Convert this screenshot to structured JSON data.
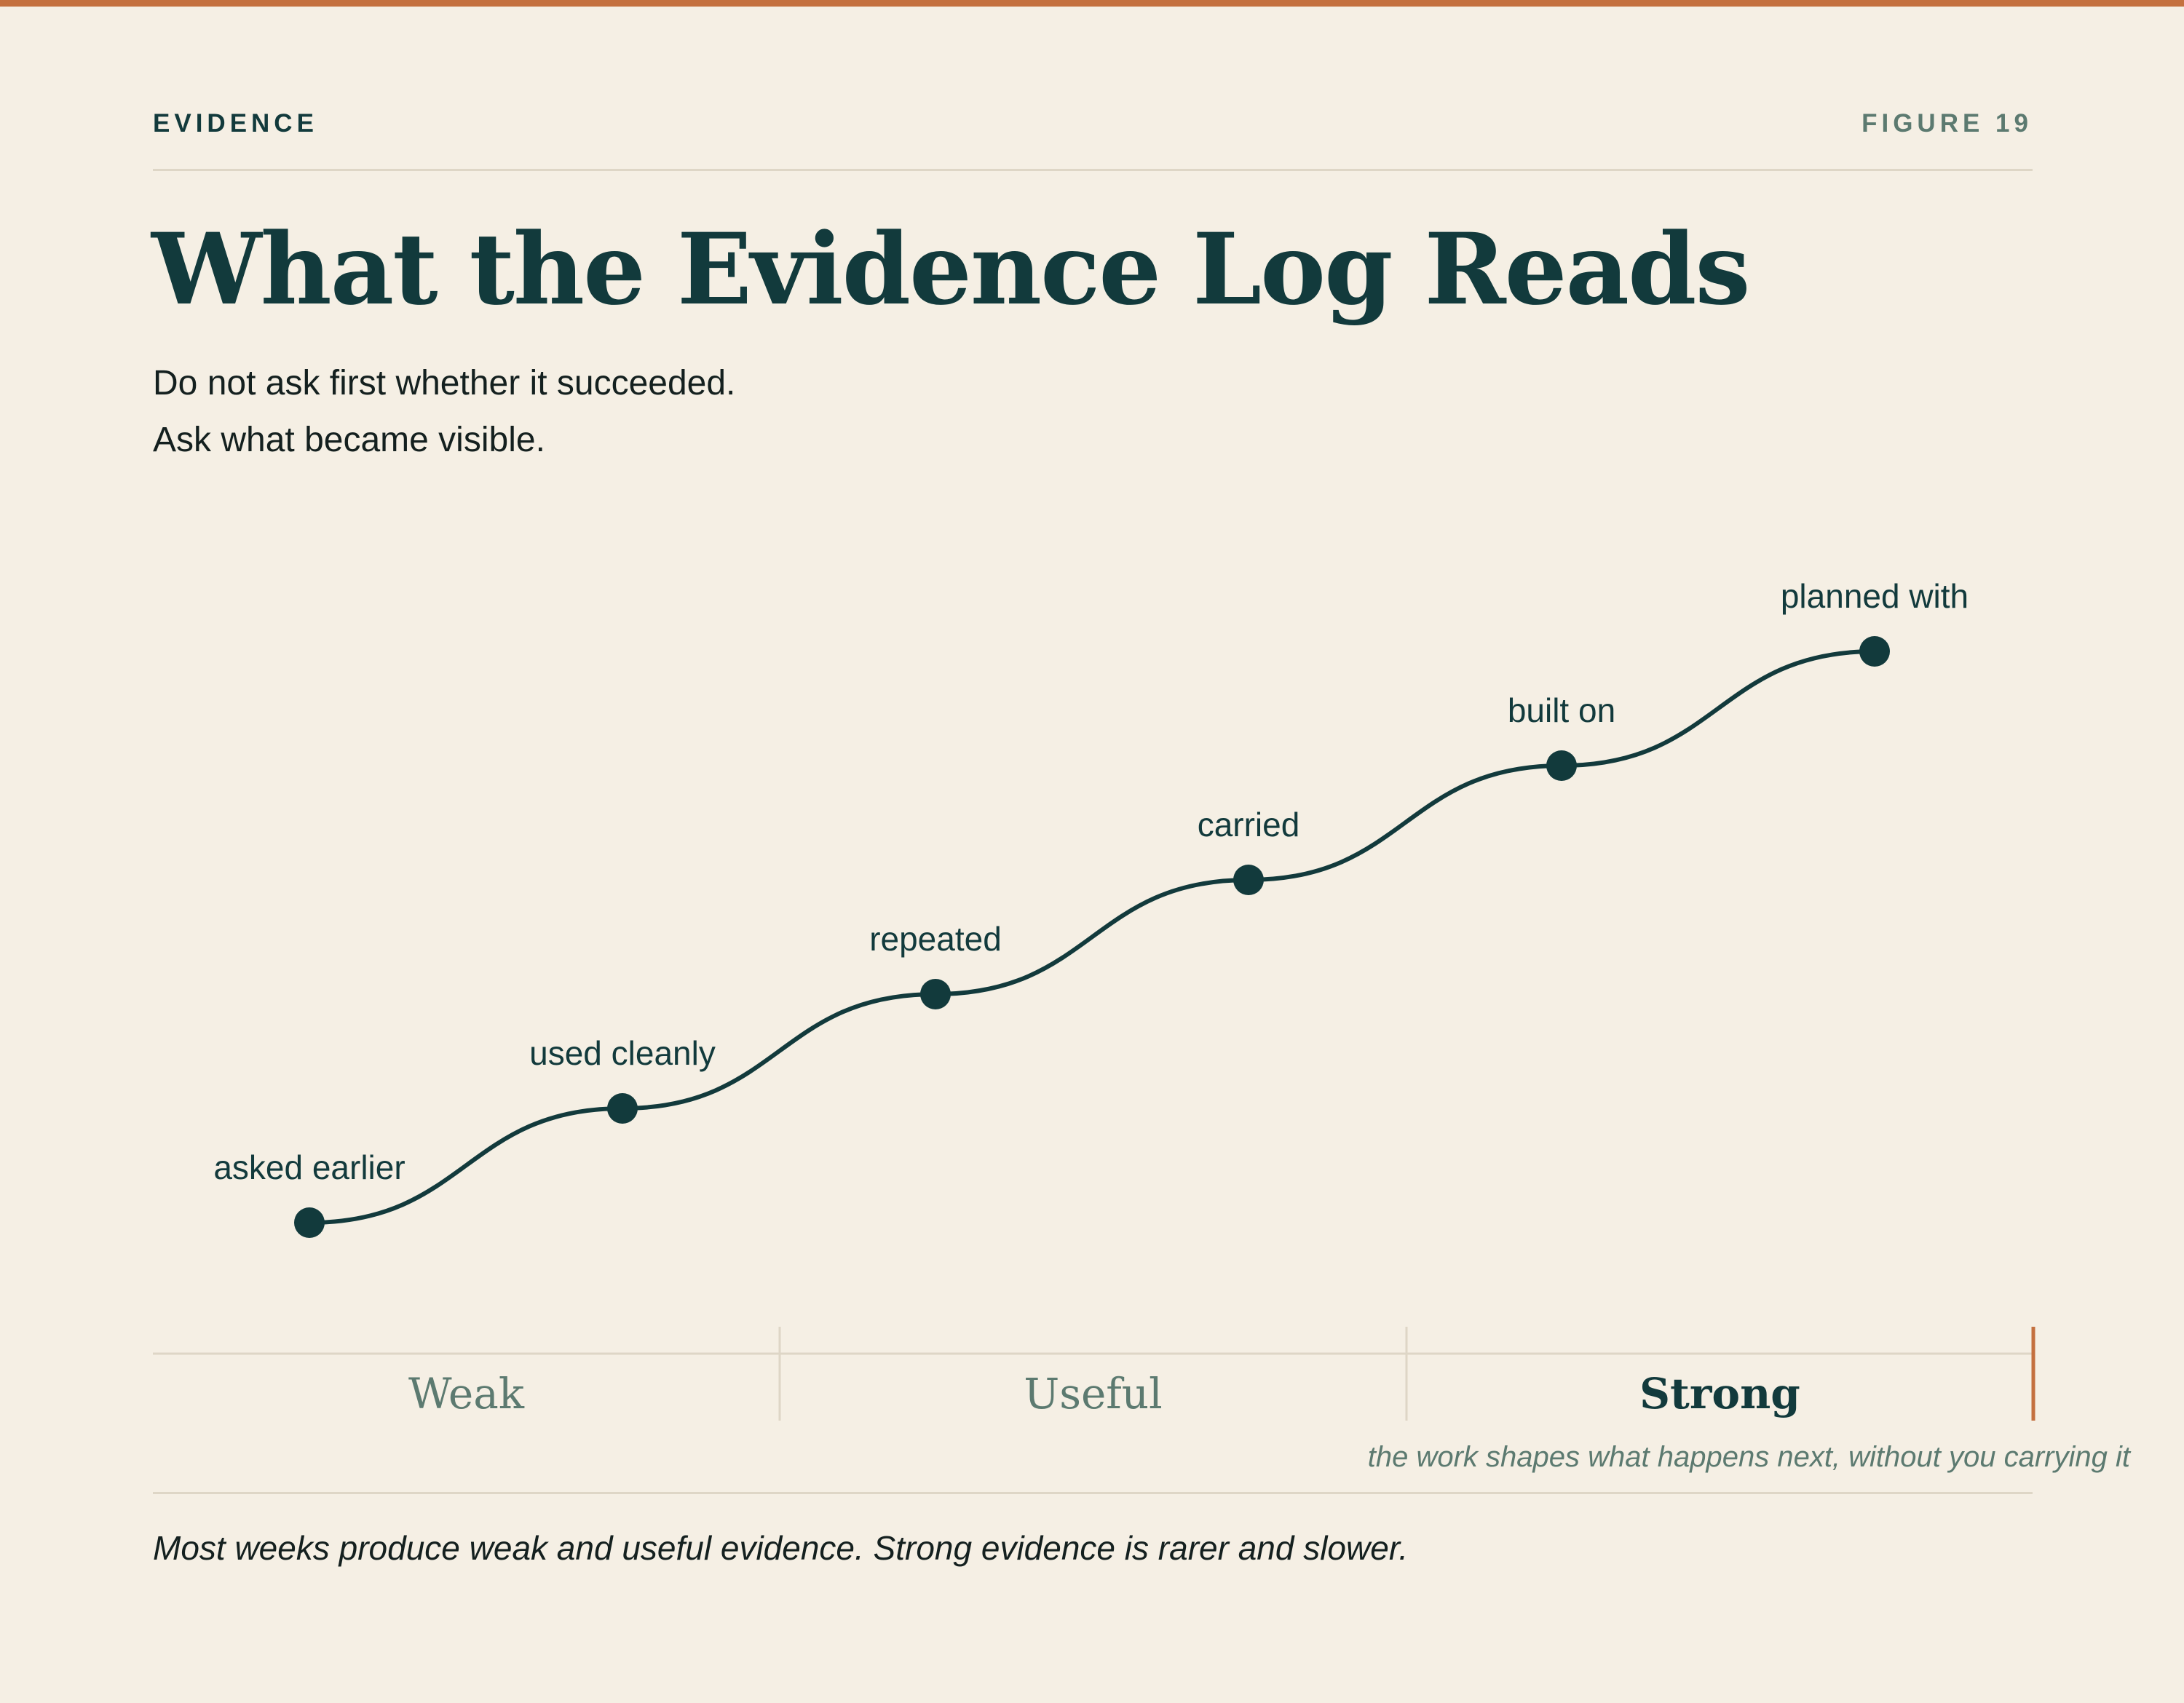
{
  "header": {
    "eyebrow": "EVIDENCE",
    "figure_label": "FIGURE 19"
  },
  "title": "What the Evidence Log Reads",
  "subtitle": {
    "line1": "Do not ask first whether it succeeded.",
    "line2": "Ask what became visible."
  },
  "chart_data": {
    "type": "line",
    "points": [
      {
        "label": "asked earlier",
        "step": 1
      },
      {
        "label": "used cleanly",
        "step": 2
      },
      {
        "label": "repeated",
        "step": 3
      },
      {
        "label": "carried",
        "step": 4
      },
      {
        "label": "built on",
        "step": 5
      },
      {
        "label": "planned with",
        "step": 6
      }
    ],
    "bands": [
      {
        "label": "Weak",
        "emphasis": false
      },
      {
        "label": "Useful",
        "emphasis": false
      },
      {
        "label": "Strong",
        "emphasis": true
      }
    ],
    "strong_caption": "the work shapes what happens next, without you carrying it"
  },
  "footnote": "Most weeks produce weak and useful evidence. Strong evidence is rarer and slower.",
  "colors": {
    "background": "#f5efe4",
    "ink": "#123a3c",
    "accent": "#c4703f",
    "muted": "#5c7a70",
    "rule": "#ded6c6"
  }
}
